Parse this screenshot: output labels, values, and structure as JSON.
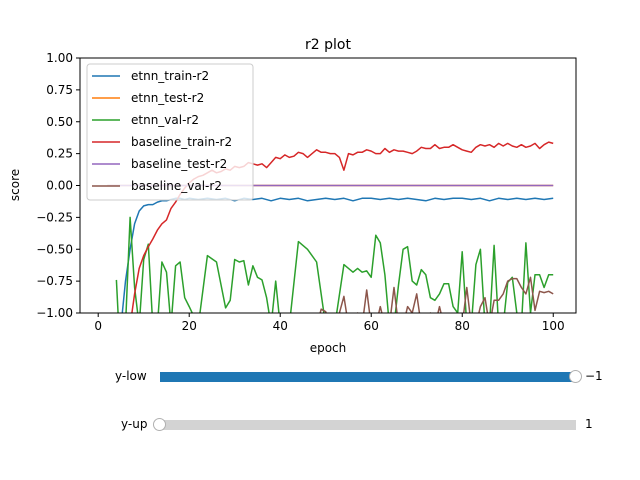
{
  "chart_data": {
    "type": "line",
    "title": "r2 plot",
    "xlabel": "epoch",
    "ylabel": "score",
    "xlim": [
      -4,
      105
    ],
    "ylim": [
      -1,
      1
    ],
    "xticks": [
      0,
      20,
      40,
      60,
      80,
      100
    ],
    "yticks": [
      -1.0,
      -0.75,
      -0.5,
      -0.25,
      0.0,
      0.25,
      0.5,
      0.75,
      1.0
    ],
    "xtick_labels": [
      "0",
      "20",
      "40",
      "60",
      "80",
      "100"
    ],
    "ytick_labels": [
      "−1.00",
      "−0.75",
      "−0.50",
      "−0.25",
      "0.00",
      "0.25",
      "0.50",
      "0.75",
      "1.00"
    ],
    "grid": false,
    "legend_position": "top-left",
    "series": [
      {
        "name": "etnn_train-r2",
        "color": "#1f77b4",
        "x": [
          5,
          6,
          7,
          8,
          9,
          10,
          11,
          12,
          13,
          14,
          15,
          16,
          17,
          18,
          19,
          20,
          22,
          24,
          26,
          28,
          30,
          32,
          34,
          36,
          38,
          40,
          42,
          44,
          46,
          48,
          50,
          52,
          54,
          56,
          58,
          60,
          62,
          64,
          66,
          68,
          70,
          72,
          74,
          76,
          78,
          80,
          82,
          84,
          86,
          88,
          90,
          92,
          94,
          96,
          98,
          100
        ],
        "y": [
          -1.1,
          -0.75,
          -0.5,
          -0.3,
          -0.2,
          -0.16,
          -0.15,
          -0.15,
          -0.13,
          -0.12,
          -0.12,
          -0.11,
          -0.1,
          -0.1,
          -0.11,
          -0.1,
          -0.11,
          -0.1,
          -0.11,
          -0.1,
          -0.12,
          -0.1,
          -0.11,
          -0.1,
          -0.12,
          -0.1,
          -0.11,
          -0.1,
          -0.12,
          -0.11,
          -0.1,
          -0.11,
          -0.1,
          -0.12,
          -0.1,
          -0.1,
          -0.11,
          -0.1,
          -0.11,
          -0.1,
          -0.11,
          -0.12,
          -0.1,
          -0.11,
          -0.1,
          -0.1,
          -0.11,
          -0.1,
          -0.12,
          -0.1,
          -0.11,
          -0.1,
          -0.11,
          -0.1,
          -0.11,
          -0.1
        ]
      },
      {
        "name": "etnn_test-r2",
        "color": "#ff7f0e",
        "x": [
          2,
          100
        ],
        "y": [
          0.0,
          0.0
        ]
      },
      {
        "name": "etnn_val-r2",
        "color": "#2ca02c",
        "x": [
          4,
          4.5,
          5,
          6,
          7,
          8,
          9,
          10,
          11,
          12,
          13,
          14,
          15,
          16,
          17,
          18,
          19,
          20,
          22,
          24,
          26,
          28,
          29,
          30,
          31,
          32,
          33,
          34,
          35,
          36,
          37,
          38,
          39,
          40,
          42,
          44,
          46,
          48,
          50,
          52,
          54,
          56,
          57,
          58,
          59,
          60,
          61,
          62,
          63,
          64,
          65,
          66,
          67,
          68,
          69,
          70,
          71,
          72,
          73,
          74,
          75,
          76,
          77,
          78,
          79,
          80,
          81,
          82,
          83,
          84,
          85,
          86,
          87,
          88,
          89,
          90,
          91,
          92,
          93,
          94,
          95,
          96,
          97,
          98,
          99,
          100
        ],
        "y": [
          -0.74,
          -1.1,
          -1.1,
          -1.1,
          -0.25,
          -0.8,
          -1.1,
          -0.58,
          -0.46,
          -1.1,
          -1.1,
          -0.6,
          -0.68,
          -1.1,
          -0.63,
          -0.6,
          -0.88,
          -0.95,
          -1.1,
          -0.55,
          -0.6,
          -0.96,
          -0.9,
          -0.58,
          -0.6,
          -0.59,
          -0.78,
          -0.63,
          -0.72,
          -0.74,
          -0.88,
          -1.1,
          -0.75,
          -1.1,
          -1.1,
          -0.44,
          -0.5,
          -0.6,
          -1.1,
          -1.1,
          -0.62,
          -0.68,
          -0.65,
          -0.68,
          -0.67,
          -0.72,
          -0.39,
          -0.45,
          -0.7,
          -1.1,
          -1.1,
          -0.78,
          -0.5,
          -0.48,
          -0.75,
          -0.78,
          -0.66,
          -0.7,
          -0.88,
          -0.9,
          -0.85,
          -0.77,
          -0.77,
          -0.95,
          -1.0,
          -0.52,
          -1.1,
          -1.1,
          -0.62,
          -0.5,
          -1.1,
          -1.1,
          -0.47,
          -1.1,
          -1.1,
          -0.76,
          -0.72,
          -1.0,
          -1.1,
          -0.45,
          -1.0,
          -0.7,
          -0.7,
          -0.8,
          -0.7,
          -0.7
        ]
      },
      {
        "name": "baseline_train-r2",
        "color": "#d62728",
        "x": [
          7,
          8,
          9,
          10,
          11,
          12,
          13,
          14,
          15,
          16,
          17,
          18,
          19,
          20,
          21,
          22,
          23,
          24,
          25,
          26,
          27,
          28,
          29,
          30,
          31,
          32,
          33,
          34,
          35,
          36,
          37,
          38,
          39,
          40,
          41,
          42,
          43,
          44,
          45,
          46,
          47,
          48,
          49,
          50,
          51,
          52,
          53,
          54,
          55,
          56,
          57,
          58,
          59,
          60,
          61,
          62,
          63,
          64,
          65,
          66,
          67,
          68,
          69,
          70,
          71,
          72,
          73,
          74,
          75,
          76,
          77,
          78,
          79,
          80,
          81,
          82,
          83,
          84,
          85,
          86,
          87,
          88,
          89,
          90,
          91,
          92,
          93,
          94,
          95,
          96,
          97,
          98,
          99,
          100
        ],
        "y": [
          -1.1,
          -0.85,
          -0.65,
          -0.55,
          -0.48,
          -0.42,
          -0.35,
          -0.3,
          -0.27,
          -0.18,
          -0.13,
          -0.07,
          -0.02,
          0.02,
          0.05,
          0.07,
          0.08,
          0.1,
          0.12,
          0.1,
          0.11,
          0.13,
          0.12,
          0.15,
          0.14,
          0.15,
          0.18,
          0.17,
          0.16,
          0.17,
          0.14,
          0.18,
          0.22,
          0.21,
          0.24,
          0.22,
          0.23,
          0.26,
          0.25,
          0.22,
          0.25,
          0.28,
          0.26,
          0.26,
          0.25,
          0.25,
          0.22,
          0.12,
          0.25,
          0.24,
          0.26,
          0.26,
          0.28,
          0.27,
          0.25,
          0.25,
          0.29,
          0.26,
          0.28,
          0.27,
          0.27,
          0.26,
          0.25,
          0.27,
          0.3,
          0.29,
          0.29,
          0.32,
          0.29,
          0.3,
          0.3,
          0.32,
          0.3,
          0.28,
          0.27,
          0.26,
          0.3,
          0.32,
          0.31,
          0.32,
          0.3,
          0.33,
          0.31,
          0.33,
          0.31,
          0.3,
          0.32,
          0.3,
          0.31,
          0.33,
          0.29,
          0.32,
          0.34,
          0.33
        ]
      },
      {
        "name": "baseline_test-r2",
        "color": "#9467bd",
        "x": [
          2,
          100
        ],
        "y": [
          0.0,
          0.0
        ]
      },
      {
        "name": "baseline_val-r2",
        "color": "#8c564b",
        "x": [
          48,
          49,
          50,
          51,
          52,
          53,
          54,
          55,
          56,
          57,
          58,
          59,
          60,
          61,
          62,
          63,
          64,
          65,
          66,
          67,
          68,
          69,
          70,
          71,
          72,
          73,
          74,
          75,
          76,
          77,
          78,
          79,
          80,
          81,
          82,
          83,
          84,
          85,
          86,
          87,
          88,
          89,
          90,
          91,
          92,
          93,
          94,
          95,
          96,
          97,
          98,
          99,
          100
        ],
        "y": [
          -1.1,
          -0.97,
          -0.99,
          -1.1,
          -1.1,
          -1.0,
          -0.87,
          -1.1,
          -1.1,
          -1.0,
          -1.1,
          -0.82,
          -1.1,
          -1.1,
          -0.95,
          -1.1,
          -1.1,
          -0.8,
          -1.1,
          -1.1,
          -0.95,
          -1.0,
          -0.85,
          -1.1,
          -1.1,
          -1.0,
          -1.1,
          -0.95,
          -1.1,
          -1.1,
          -1.1,
          -1.1,
          -1.1,
          -0.8,
          -1.1,
          -1.1,
          -0.95,
          -0.88,
          -1.1,
          -0.9,
          -0.9,
          -0.85,
          -0.75,
          -0.73,
          -0.73,
          -0.8,
          -0.85,
          -0.72,
          -0.98,
          -0.83,
          -0.84,
          -0.83,
          -0.85
        ]
      }
    ]
  },
  "sliders": [
    {
      "label": "y-low",
      "value_text": "−1",
      "fraction": 1.0,
      "fill_color": "#1f77b4"
    },
    {
      "label": "y-up",
      "value_text": "1",
      "fraction": 0.0,
      "fill_color": "#1f77b4"
    }
  ]
}
